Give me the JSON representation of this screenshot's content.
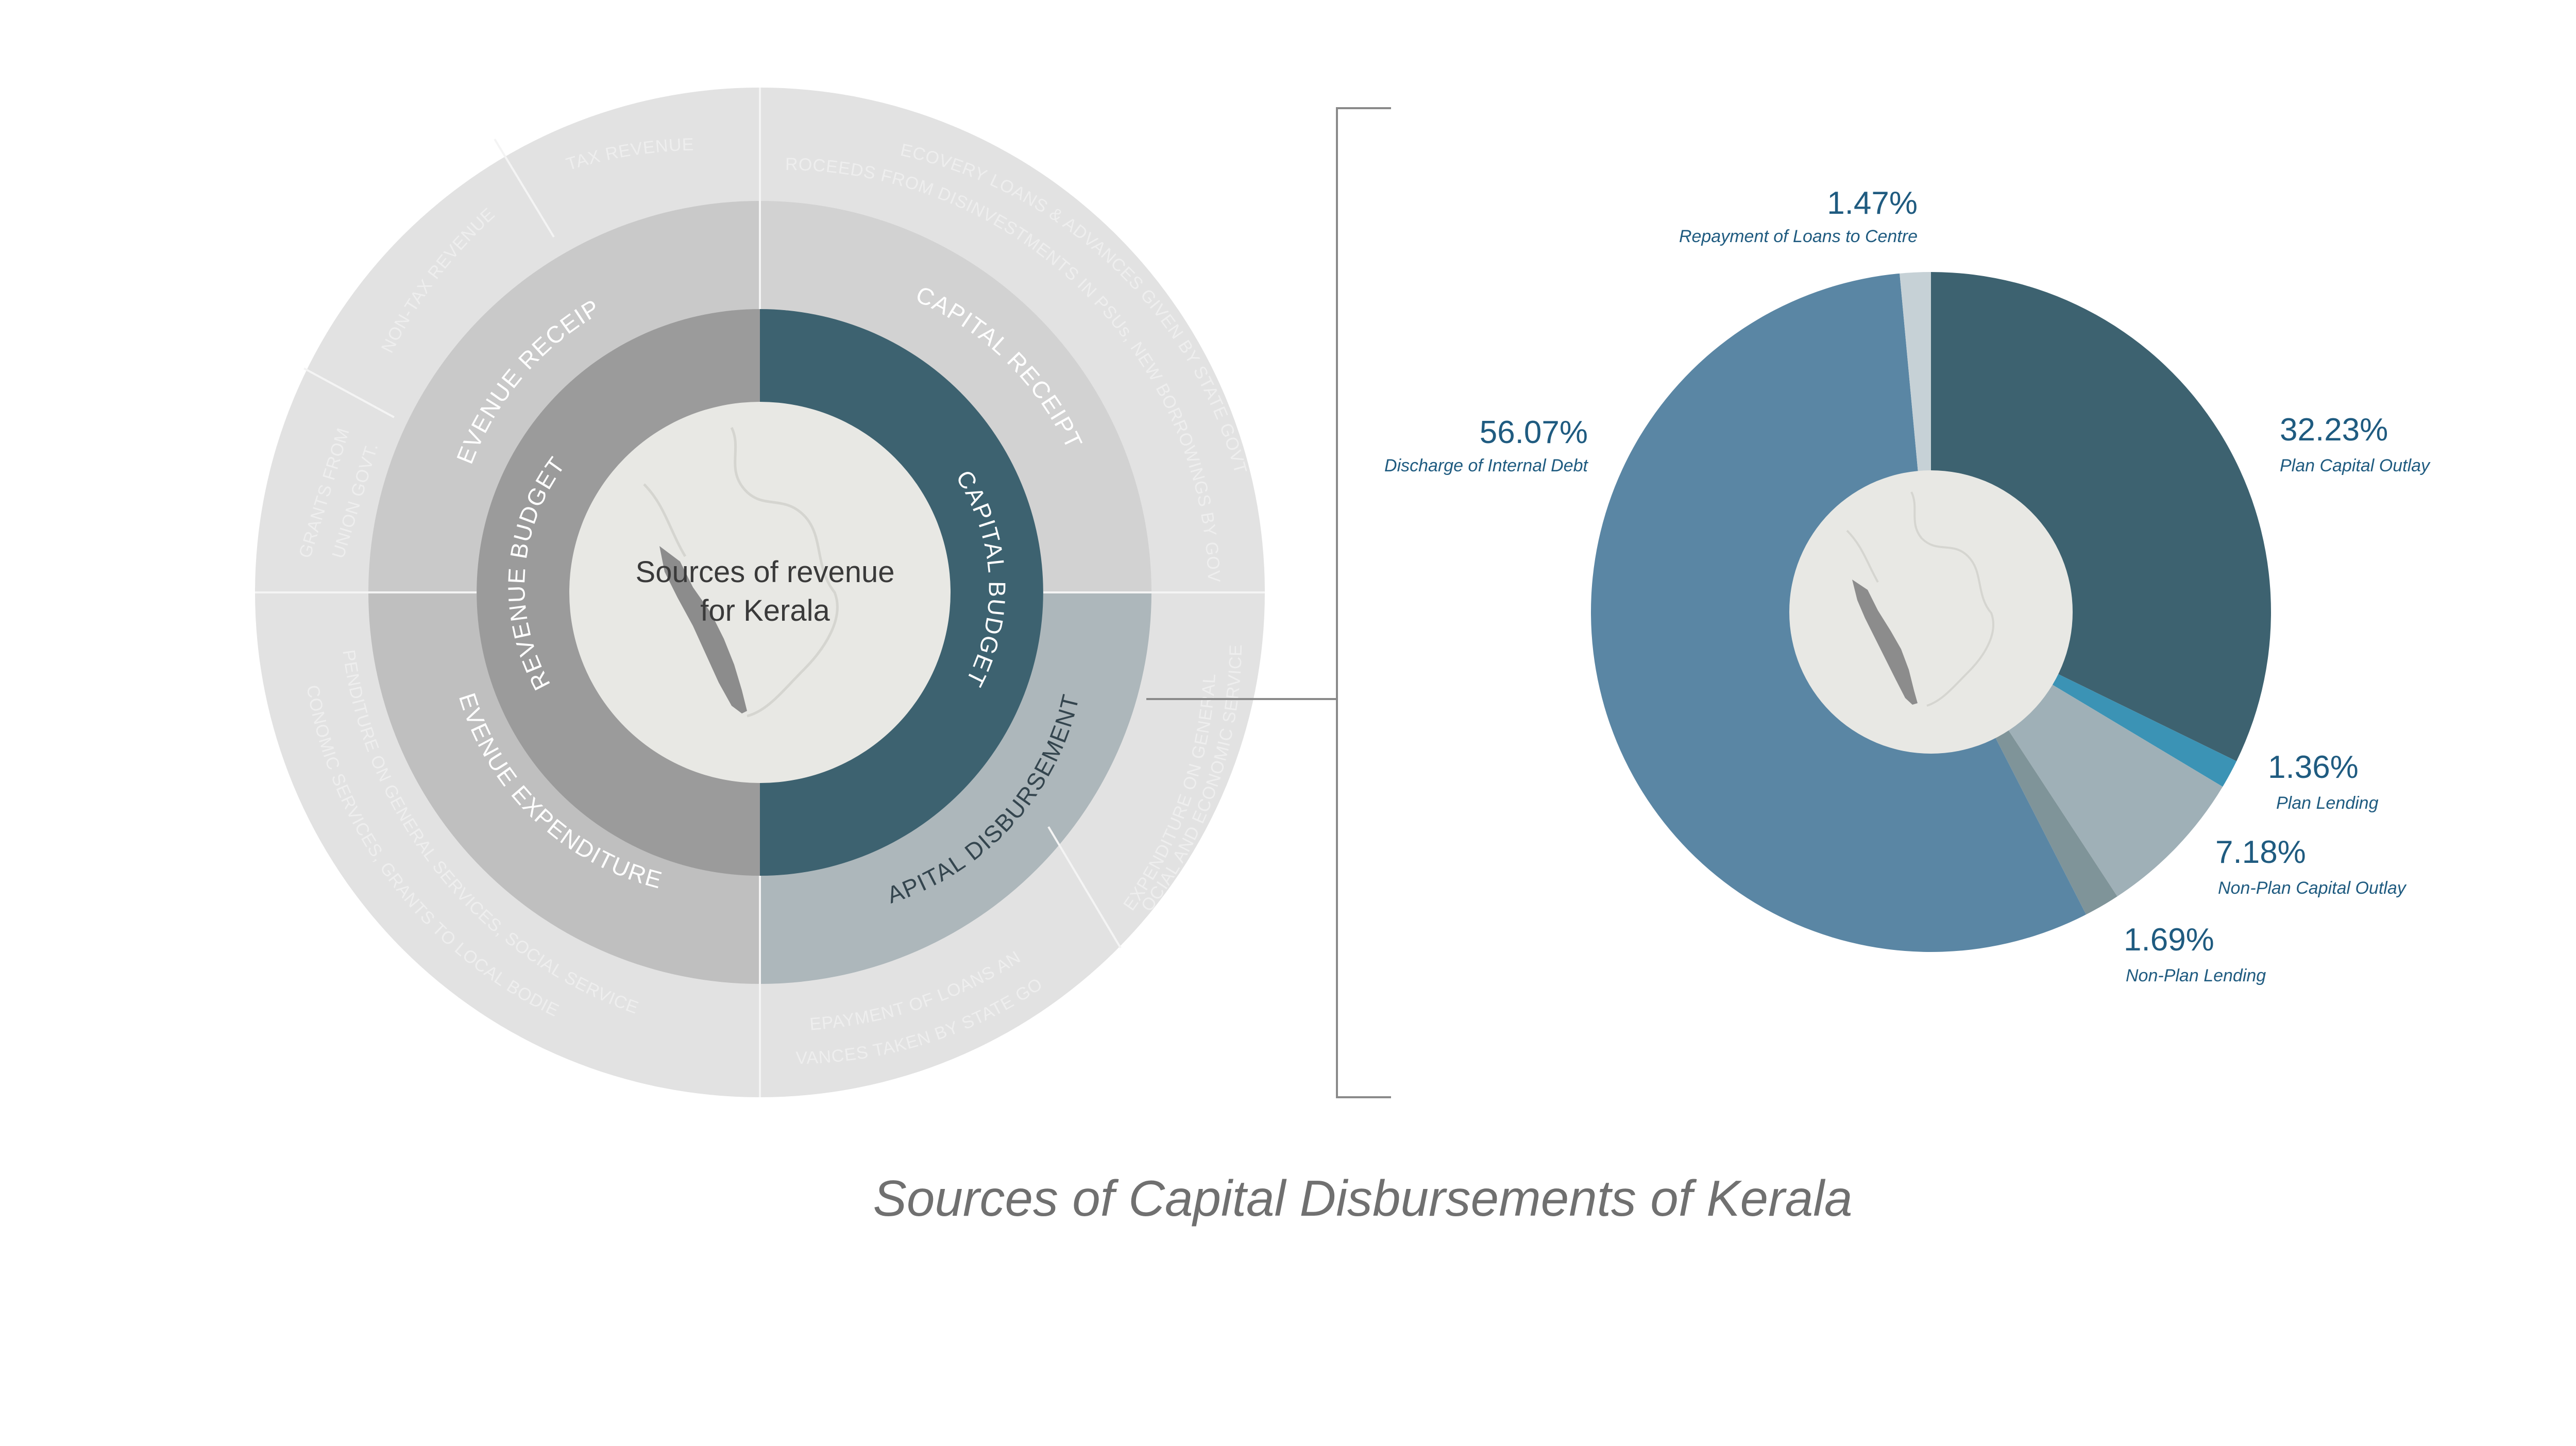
{
  "title": "Sources of Capital Disbursements of Kerala",
  "sunburst": {
    "center_title_line1": "Sources of revenue",
    "center_title_line2": "for Kerala",
    "inner": {
      "revenue_budget": "REVENUE  BUDGET",
      "capital_budget": "CAPITAL  BUDGET"
    },
    "middle": {
      "revenue_receipts": "REVENUE RECEIPTS",
      "capital_receipts": "CAPITAL RECEIPTS",
      "capital_disbursements": "CAPITAL  DISBURSEMENTS",
      "revenue_expenditures": "REVENUE  EXPENDITURES"
    },
    "outer": {
      "tax_revenue": "TAX REVENUE",
      "non_tax_revenue": "NON-TAX REVENUE",
      "grants_line1": "GRANTS FROM",
      "grants_line2": "UNION GOVT.",
      "recovery_line1": "RECOVERY LOANS & ADVANCES GIVEN BY STATE GOVT.",
      "recovery_line2": "PROCEEDS FROM DISINVESTMENTS IN PSUs, NEW BORROWINGS BY GOVT.",
      "exp_gen_line1": "EXPENDITURE ON GENERAL",
      "exp_gen_line2": "SOCIAL AND ECONOMIC SERVICES",
      "repay_line1": "REPAYMENT OF LOANS AND",
      "repay_line2": "ADVANCES TAKEN BY STATE GOVT.",
      "rev_exp_line1": "EXPENDITURE ON GENERAL SERVICES, SOCIAL SERVICES,",
      "rev_exp_line2": "ECONOMIC SERVICES, GRANTS TO LOCAL BODIES"
    }
  },
  "chart_data": {
    "type": "pie",
    "title": "Sources of Capital Disbursements of Kerala",
    "donut": true,
    "slices": [
      {
        "label": "Plan Capital Outlay",
        "value": 32.23,
        "display": "32.23%",
        "color": "#3d6270"
      },
      {
        "label": "Plan Lending",
        "value": 1.36,
        "display": "1.36%",
        "color": "#3b93b5"
      },
      {
        "label": "Non-Plan Capital Outlay",
        "value": 7.18,
        "display": "7.18%",
        "color": "#9fb0b7"
      },
      {
        "label": "Non-Plan Lending",
        "value": 1.69,
        "display": "1.69%",
        "color": "#7f9499"
      },
      {
        "label": "Discharge of Internal Debt",
        "value": 56.07,
        "display": "56.07%",
        "color": "#5a86a4"
      },
      {
        "label": "Repayment of Loans to Centre",
        "value": 1.47,
        "display": "1.47%",
        "color": "#c6d1d6"
      }
    ]
  },
  "colors": {
    "sun_outer": "#e2e2e2",
    "sun_middle_left": "#c9c9c9",
    "sun_middle_right": "#d2d2d2",
    "sun_middle_disbursements": "#adb7bb",
    "sun_inner_revenue": "#9b9b9b",
    "sun_inner_capital": "#3d6270",
    "center_fill": "#e8e8e4",
    "map_fill": "#8c8c8c"
  }
}
